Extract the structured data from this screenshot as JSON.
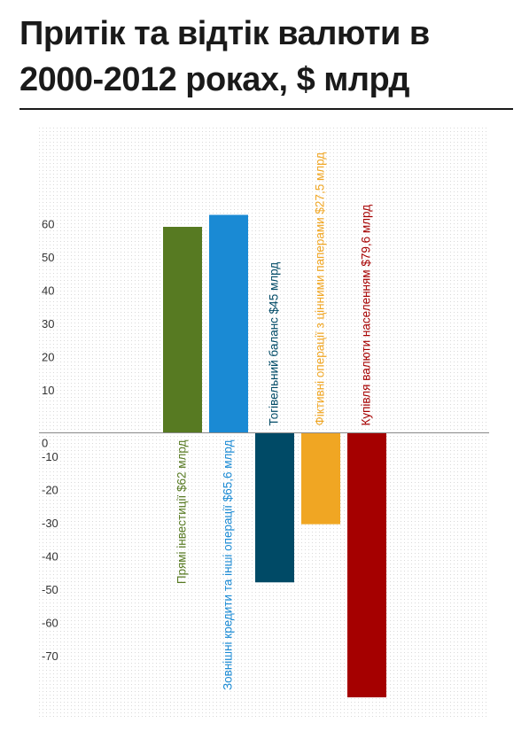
{
  "title": "Притік та відтік валюти в 2000-2012 роках, $ млрд",
  "colors": {
    "zero_line": "#888888",
    "tick_text": "#333333",
    "grid_bg": "#f2f2f2"
  },
  "chart_data": {
    "type": "bar",
    "title": "Притік та відтік валюти в 2000-2012 роках, $ млрд",
    "xlabel": "",
    "ylabel": "",
    "ylim": [
      -80,
      80
    ],
    "yticks": [
      60,
      50,
      40,
      30,
      20,
      10,
      0,
      -10,
      -20,
      -30,
      -40,
      -50,
      -60,
      -70
    ],
    "grid": true,
    "legend": "none",
    "categories": [
      "Прямі інвестиції $62 млрд",
      "Зовнішні кредити та інші операції $65,6 млрд",
      "Тогівельний баланс $45 млрд",
      "Фіктивні операції з цінними паперами $27,5 млрд",
      "Купівля валюти населенням $79,6 млрд"
    ],
    "values": [
      62,
      65.6,
      -45,
      -27.5,
      -79.6
    ],
    "colors": [
      "#577a22",
      "#1a8ad4",
      "#004a66",
      "#f0a623",
      "#a50000"
    ]
  }
}
